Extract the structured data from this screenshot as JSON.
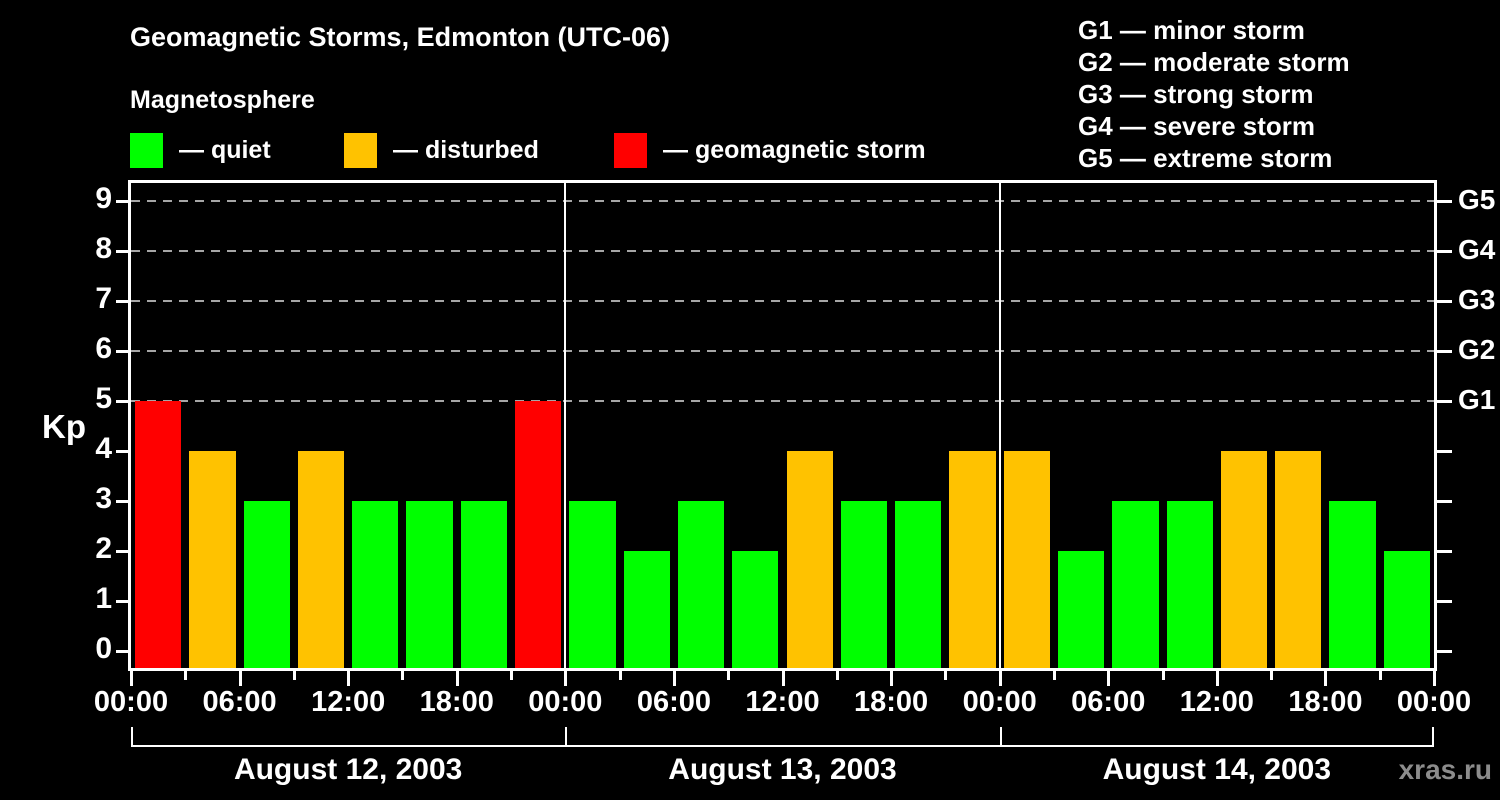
{
  "header": {
    "title": "Geomagnetic Storms, Edmonton (UTC-06)",
    "subtitle": "Magnetosphere"
  },
  "legend": {
    "items": [
      {
        "status": "quiet",
        "label": "— quiet",
        "color": "#00ff00"
      },
      {
        "status": "disturbed",
        "label": "— disturbed",
        "color": "#ffc200"
      },
      {
        "status": "storm",
        "label": "— geomagnetic storm",
        "color": "#ff0000"
      }
    ]
  },
  "g_scale_legend": {
    "items": [
      {
        "label": "G1 — minor storm"
      },
      {
        "label": "G2 — moderate storm"
      },
      {
        "label": "G3 — strong storm"
      },
      {
        "label": "G4 — severe storm"
      },
      {
        "label": "G5 — extreme storm"
      }
    ]
  },
  "watermark": "xras.ru",
  "chart_data": {
    "type": "bar",
    "title": "Geomagnetic Storms, Edmonton (UTC-06)",
    "subtitle": "Magnetosphere",
    "ylabel": "Kp",
    "ylim": [
      0,
      9
    ],
    "y_ticks": [
      0,
      1,
      2,
      3,
      4,
      5,
      6,
      7,
      8,
      9
    ],
    "gridlines_at_kp": [
      5,
      6,
      7,
      8,
      9
    ],
    "grid": "dashed horizontal lines at Kp 5 through 9",
    "right_axis_labels": [
      {
        "kp": 5,
        "label": "G1"
      },
      {
        "kp": 6,
        "label": "G2"
      },
      {
        "kp": 7,
        "label": "G3"
      },
      {
        "kp": 8,
        "label": "G4"
      },
      {
        "kp": 9,
        "label": "G5"
      }
    ],
    "x_tick_labels": [
      "00:00",
      "06:00",
      "12:00",
      "18:00",
      "00:00",
      "06:00",
      "12:00",
      "18:00",
      "00:00",
      "06:00",
      "12:00",
      "18:00",
      "00:00"
    ],
    "interval_hours": 3,
    "days": [
      {
        "date": "August 12, 2003",
        "kp_values": [
          5,
          4,
          3,
          4,
          3,
          3,
          3,
          5
        ]
      },
      {
        "date": "August 13, 2003",
        "kp_values": [
          3,
          2,
          3,
          2,
          4,
          3,
          3,
          4
        ]
      },
      {
        "date": "August 14, 2003",
        "kp_values": [
          4,
          2,
          3,
          3,
          4,
          4,
          3,
          2
        ]
      }
    ],
    "status_by_kp": {
      "quiet": "Kp <= 3",
      "disturbed": "Kp == 4",
      "storm": "Kp >= 5"
    },
    "colors": {
      "quiet": "#00ff00",
      "disturbed": "#ffc200",
      "storm": "#ff0000"
    },
    "legend_position": "top-left"
  }
}
